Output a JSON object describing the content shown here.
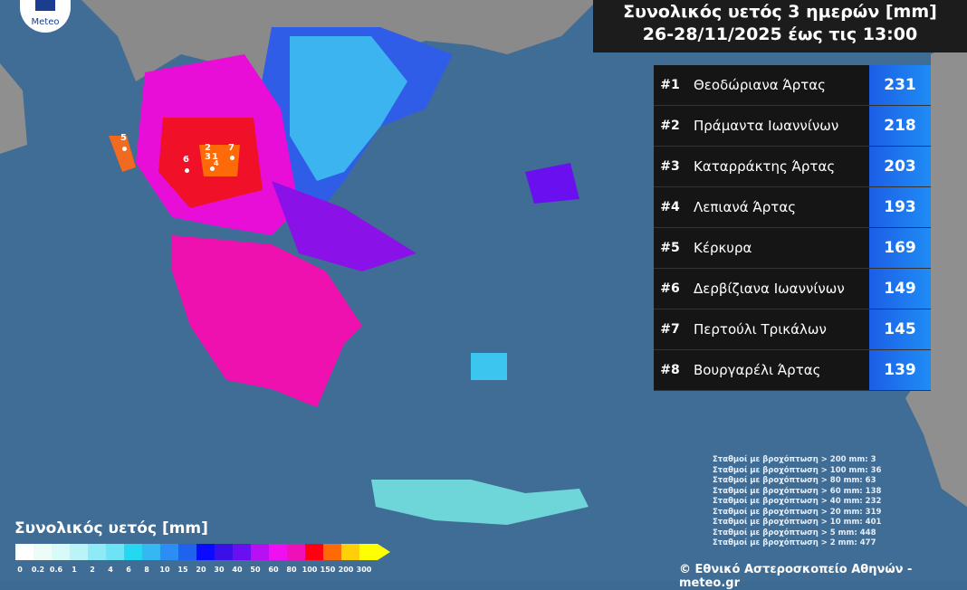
{
  "header": {
    "title_line1": "Συνολικός υετός 3 ημερών [mm]",
    "title_line2": "26-28/11/2025 έως τις 13:00",
    "logo_text": "Meteo"
  },
  "ranking": [
    {
      "rank": "#1",
      "station": "Θεοδώριανα Άρτας",
      "value": "231"
    },
    {
      "rank": "#2",
      "station": "Πράμαντα Ιωαννίνων",
      "value": "218"
    },
    {
      "rank": "#3",
      "station": "Καταρράκτης Άρτας",
      "value": "203"
    },
    {
      "rank": "#4",
      "station": "Λεπιανά Άρτας",
      "value": "193"
    },
    {
      "rank": "#5",
      "station": "Κέρκυρα",
      "value": "169"
    },
    {
      "rank": "#6",
      "station": "Δερβίζιανα Ιωαννίνων",
      "value": "149"
    },
    {
      "rank": "#7",
      "station": "Περτούλι Τρικάλων",
      "value": "145"
    },
    {
      "rank": "#8",
      "station": "Βουργαρέλι Άρτας",
      "value": "139"
    }
  ],
  "stats": [
    "Σταθμοί με βροχόπτωση > 200 mm: 3",
    "Σταθμοί με βροχόπτωση > 100 mm: 36",
    "Σταθμοί με βροχόπτωση > 80 mm: 63",
    "Σταθμοί με βροχόπτωση > 60 mm: 138",
    "Σταθμοί με βροχόπτωση > 40 mm: 232",
    "Σταθμοί με βροχόπτωση > 20 mm: 319",
    "Σταθμοί με βροχόπτωση > 10 mm: 401",
    "Σταθμοί με βροχόπτωση > 5 mm: 448",
    "Σταθμοί με βροχόπτωση > 2 mm: 477"
  ],
  "legend": {
    "title": "Συνολικός υετός [mm]",
    "ticks": [
      "0",
      "0.2",
      "0.6",
      "1",
      "2",
      "4",
      "6",
      "8",
      "10",
      "15",
      "20",
      "30",
      "40",
      "50",
      "60",
      "80",
      "100",
      "150",
      "200",
      "300"
    ],
    "colors": [
      "#ffffff",
      "#eefcf8",
      "#d8faf8",
      "#baf3f8",
      "#8eeaf6",
      "#6ee3f5",
      "#25d8ef",
      "#35b8f2",
      "#2c8ef4",
      "#1f62ee",
      "#0a0aff",
      "#3a10e6",
      "#6a10f0",
      "#b710f2",
      "#ef10f2",
      "#f010b8",
      "#ff0010",
      "#ff6a08",
      "#ffcf08",
      "#ffff00"
    ]
  },
  "stations_on_map": [
    "1",
    "2",
    "3",
    "4",
    "5",
    "6",
    "7"
  ],
  "credit": "© Εθνικό Αστεροσκοπείο Αθηνών - meteo.gr"
}
